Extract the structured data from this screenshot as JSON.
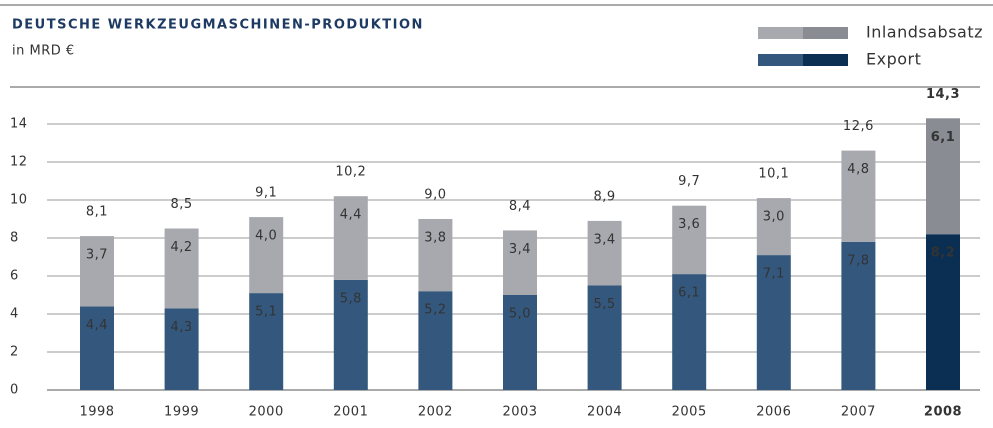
{
  "chart_data": {
    "type": "stacked_bar",
    "title": "DEUTSCHE WERKZEUGMASCHINEN-PRODUKTION",
    "subtitle": "in MRD €",
    "categories": [
      "1998",
      "1999",
      "2000",
      "2001",
      "2002",
      "2003",
      "2004",
      "2005",
      "2006",
      "2007",
      "2008"
    ],
    "highlight_category": "2008",
    "series": [
      {
        "name": "Export",
        "color": "#34587d",
        "highlight_color": "#0b2e53",
        "values": [
          4.4,
          4.3,
          5.1,
          5.8,
          5.2,
          5.0,
          5.5,
          6.1,
          7.1,
          7.8,
          8.2
        ],
        "value_labels": [
          "4,4",
          "4,3",
          "5,1",
          "5,8",
          "5,2",
          "5,0",
          "5,5",
          "6,1",
          "7,1",
          "7,8",
          "8,2"
        ]
      },
      {
        "name": "Inlandsabsatz",
        "color": "#a7a9ae",
        "highlight_color": "#8a8c93",
        "values": [
          3.7,
          4.2,
          4.0,
          4.4,
          3.8,
          3.4,
          3.4,
          3.6,
          3.0,
          4.8,
          6.1
        ],
        "value_labels": [
          "3,7",
          "4,2",
          "4,0",
          "4,4",
          "3,8",
          "3,4",
          "3,4",
          "3,6",
          "3,0",
          "4,8",
          "6,1"
        ]
      }
    ],
    "totals": [
      8.1,
      8.5,
      9.1,
      10.2,
      9.0,
      8.4,
      8.9,
      9.7,
      10.1,
      12.6,
      14.3
    ],
    "total_labels": [
      "8,1",
      "8,5",
      "9,1",
      "10,2",
      "9,0",
      "8,4",
      "8,9",
      "9,7",
      "10,1",
      "12,6",
      "14,3"
    ],
    "ylim": [
      0,
      14
    ],
    "yticks": [
      0,
      2,
      4,
      6,
      8,
      10,
      12,
      14
    ],
    "grid": true,
    "legend": "top-right"
  }
}
